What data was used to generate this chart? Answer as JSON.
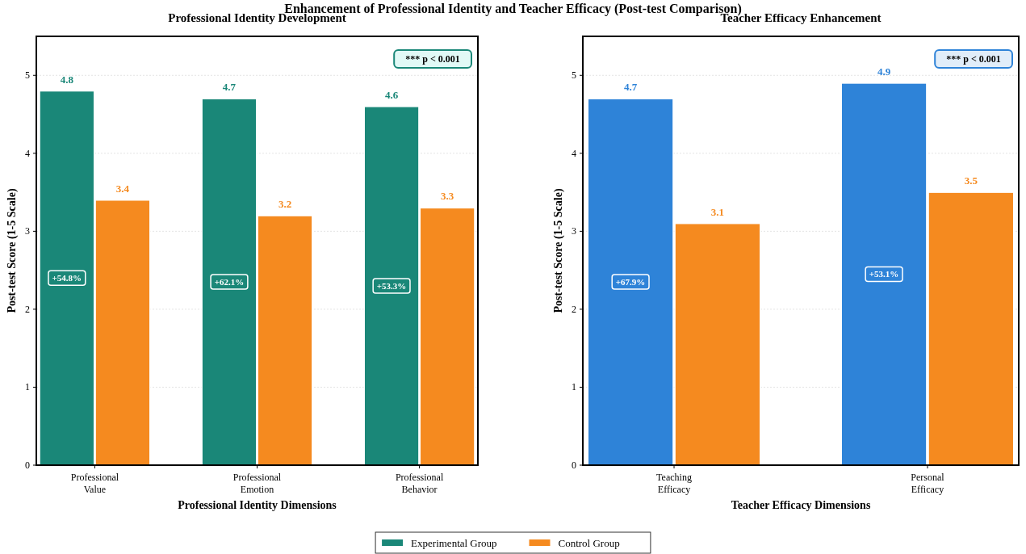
{
  "chart_data": [
    {
      "type": "bar",
      "title": "Professional Identity Development",
      "xlabel": "Professional Identity Dimensions",
      "ylabel": "Post-test Score (1-5 Scale)",
      "categories": [
        "Professional Value",
        "Professional Emotion",
        "Professional Behavior"
      ],
      "series": [
        {
          "name": "Experimental Group",
          "color": "#1a8778",
          "values": [
            4.8,
            4.7,
            4.6
          ]
        },
        {
          "name": "Control Group",
          "color": "#f58a1f",
          "values": [
            3.4,
            3.2,
            3.3
          ]
        }
      ],
      "ylim": [
        0,
        5.5
      ],
      "yticks": [
        0,
        1,
        2,
        3,
        4,
        5
      ],
      "grid": "y",
      "data_labels": true,
      "legend": "bottom",
      "annotations": [
        "Enhancement of Professional Identity and Teacher Efficacy (Post-test Comparison)",
        "*** p < 0.001",
        "+54.8%",
        "+62.1%",
        "+53.3%"
      ]
    },
    {
      "type": "bar",
      "title": "Teacher Efficacy Enhancement",
      "xlabel": "Teacher Efficacy Dimensions",
      "ylabel": "Post-test Score (1-5 Scale)",
      "categories": [
        "Teaching Efficacy",
        "Personal Efficacy"
      ],
      "series": [
        {
          "color": "#2e83d8",
          "values": [
            4.7,
            4.9
          ]
        },
        {
          "color": "#f58a1f",
          "values": [
            3.1,
            3.5
          ]
        }
      ],
      "ylim": [
        0,
        5.5
      ],
      "yticks": [
        0,
        1,
        2,
        3,
        4,
        5
      ],
      "grid": "y",
      "data_labels": true,
      "annotations": [
        "*** p < 0.001",
        "+67.9%",
        "+53.1%"
      ]
    }
  ]
}
